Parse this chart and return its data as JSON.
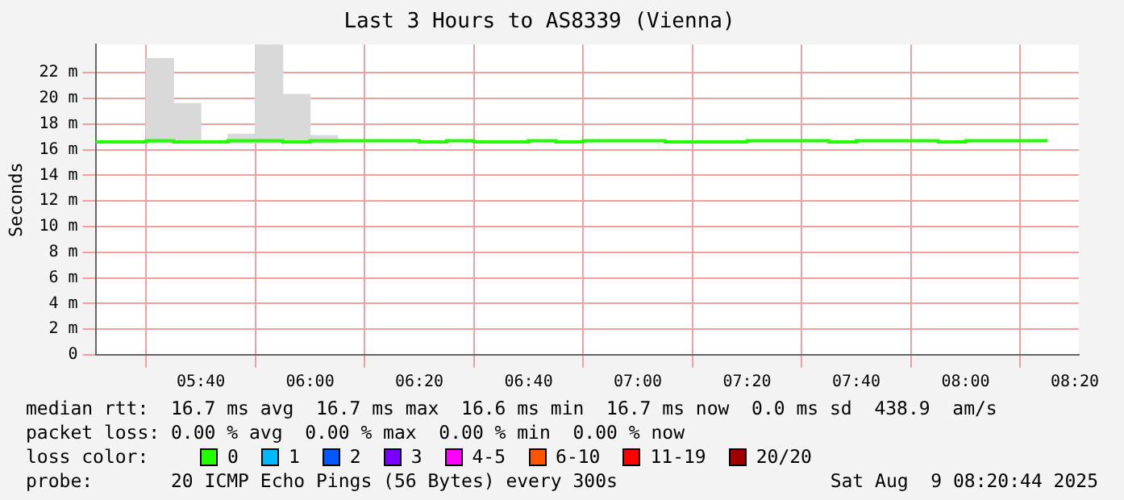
{
  "chart_data": {
    "type": "step",
    "title": "Last 3 Hours to AS8339 (Vienna)",
    "ylabel": "Seconds",
    "legend_title": "loss color:",
    "legend": "bottom",
    "grid": true,
    "xlim": [
      5.3456,
      8.3456
    ],
    "xticks": [
      {
        "value": 5.6667,
        "label": "05:40"
      },
      {
        "value": 6,
        "label": "06:00"
      },
      {
        "value": 6.3333,
        "label": "06:20"
      },
      {
        "value": 6.6667,
        "label": "06:40"
      },
      {
        "value": 7,
        "label": "07:00"
      },
      {
        "value": 7.3333,
        "label": "07:20"
      },
      {
        "value": 7.6667,
        "label": "07:40"
      },
      {
        "value": 8,
        "label": "08:00"
      },
      {
        "value": 8.3333,
        "label": "08:20"
      }
    ],
    "ylim": [
      0,
      24.2
    ],
    "yticks": [
      0,
      {
        "value": 2,
        "label": "2 m"
      },
      {
        "value": 4,
        "label": "4 m"
      },
      {
        "value": 6,
        "label": "6 m"
      },
      {
        "value": 8,
        "label": "8 m"
      },
      {
        "value": 10,
        "label": "10 m"
      },
      {
        "value": 12,
        "label": "12 m"
      },
      {
        "value": 14,
        "label": "14 m"
      },
      {
        "value": 16,
        "label": "16 m"
      },
      {
        "value": 18,
        "label": "18 m"
      },
      {
        "value": 20,
        "label": "20 m"
      },
      {
        "value": 22,
        "label": "22 m"
      }
    ],
    "series": [
      {
        "type": "bar",
        "color": "#d9d9d9",
        "x": [
          5.5417,
          5.625,
          5.7917,
          5.875,
          5.9583,
          6.0417
        ],
        "base": [
          16.5,
          16.5,
          16.5,
          16.5,
          16.5,
          16.5
        ],
        "values": [
          6.6,
          3.1,
          0.7,
          7.7,
          3.8,
          0.6
        ]
      },
      {
        "name": "0",
        "color": "#22ff00",
        "x": [
          5.3456,
          5.4167,
          5.5,
          5.5833,
          5.6667,
          5.75,
          5.8333,
          5.9167,
          6,
          6.0833,
          6.1667,
          6.25,
          6.3333,
          6.4167,
          6.5,
          6.5833,
          6.6667,
          6.75,
          6.8333,
          6.9167,
          7,
          7.0833,
          7.1667,
          7.25,
          7.3333,
          7.4167,
          7.5,
          7.5833,
          7.6667,
          7.75,
          7.8333,
          7.9167,
          8,
          8.0833,
          8.1667,
          8.25
        ],
        "values": [
          16.6,
          16.6,
          16.6,
          16.7,
          16.6,
          16.6,
          16.7,
          16.7,
          16.6,
          16.7,
          16.7,
          16.7,
          16.7,
          16.6,
          16.7,
          16.6,
          16.6,
          16.7,
          16.6,
          16.7,
          16.7,
          16.7,
          16.6,
          16.6,
          16.6,
          16.7,
          16.7,
          16.7,
          16.6,
          16.7,
          16.7,
          16.7,
          16.6,
          16.7,
          16.7,
          16.7
        ]
      },
      {
        "name": "1",
        "color": "#00b8ff"
      },
      {
        "name": "2",
        "color": "#0059ff"
      },
      {
        "name": "3",
        "color": "#7a00ff"
      },
      {
        "name": "4-5",
        "color": "#ff00ff"
      },
      {
        "name": "6-10",
        "color": "#ff5500"
      },
      {
        "name": "11-19",
        "color": "#ff0000"
      },
      {
        "name": "20/20",
        "color": "#a10000"
      }
    ],
    "annotations": [
      "median rtt:  16.7 ms avg  16.7 ms max  16.6 ms min  16.7 ms now  0.0 ms sd  438.9  am/s",
      "packet loss: 0.00 % avg  0.00 % max  0.00 % min  0.00 % now",
      "probe:       20 ICMP Echo Pings (56 Bytes) every 300s",
      "Sat Aug  9 08:20:44 2025"
    ]
  }
}
